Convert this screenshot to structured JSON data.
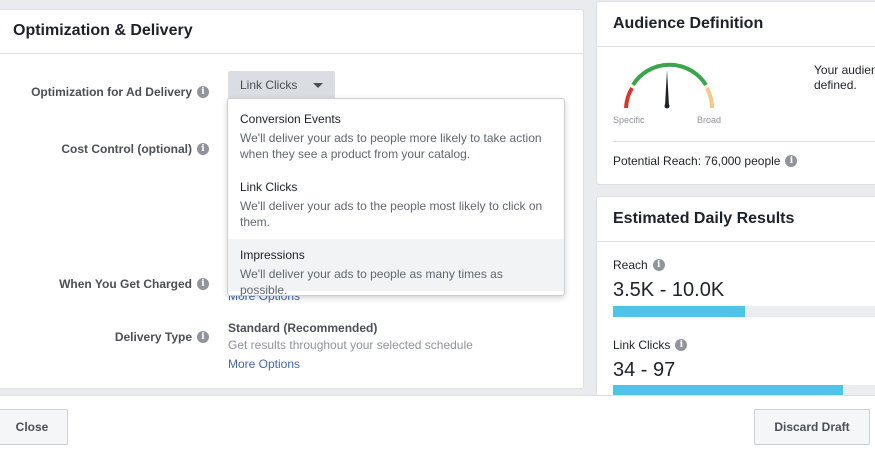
{
  "optimization": {
    "title": "Optimization & Delivery",
    "rows": {
      "optimization_label": "Optimization for Ad Delivery",
      "cost_control_label": "Cost Control (optional)",
      "when_charged_label": "When You Get Charged",
      "delivery_type_label": "Delivery Type"
    },
    "dropdown_value": "Link Clicks",
    "charged_more_options": "More Options",
    "delivery_type": {
      "value": "Standard (Recommended)",
      "description": "Get results throughout your selected schedule",
      "more_options": "More Options"
    },
    "menu": [
      {
        "title": "Conversion Events",
        "description": "We'll deliver your ads to people more likely to take action when they see a product from your catalog."
      },
      {
        "title": "Link Clicks",
        "description": "We'll deliver your ads to the people most likely to click on them."
      },
      {
        "title": "Impressions",
        "description": "We'll deliver your ads to people as many times as possible."
      }
    ]
  },
  "audience": {
    "title": "Audience Definition",
    "gauge_specific": "Specific",
    "gauge_broad": "Broad",
    "text_line1": "Your audien",
    "text_line2": "defined.",
    "potential_reach": "Potential Reach: 76,000 people"
  },
  "estimates": {
    "title": "Estimated Daily Results",
    "metrics": [
      {
        "label": "Reach",
        "value": "3.5K - 10.0K",
        "fill": 0.47
      },
      {
        "label": "Link Clicks",
        "value": "34 - 97",
        "fill": 0.82
      }
    ]
  },
  "footer": {
    "close": "Close",
    "discard": "Discard Draft"
  },
  "colors": {
    "bar_fill": "#4fc3e8",
    "link": "#4267b2",
    "gauge_red": "#d9362b",
    "gauge_green": "#3aa54a",
    "gauge_orange": "#f3c88a"
  }
}
